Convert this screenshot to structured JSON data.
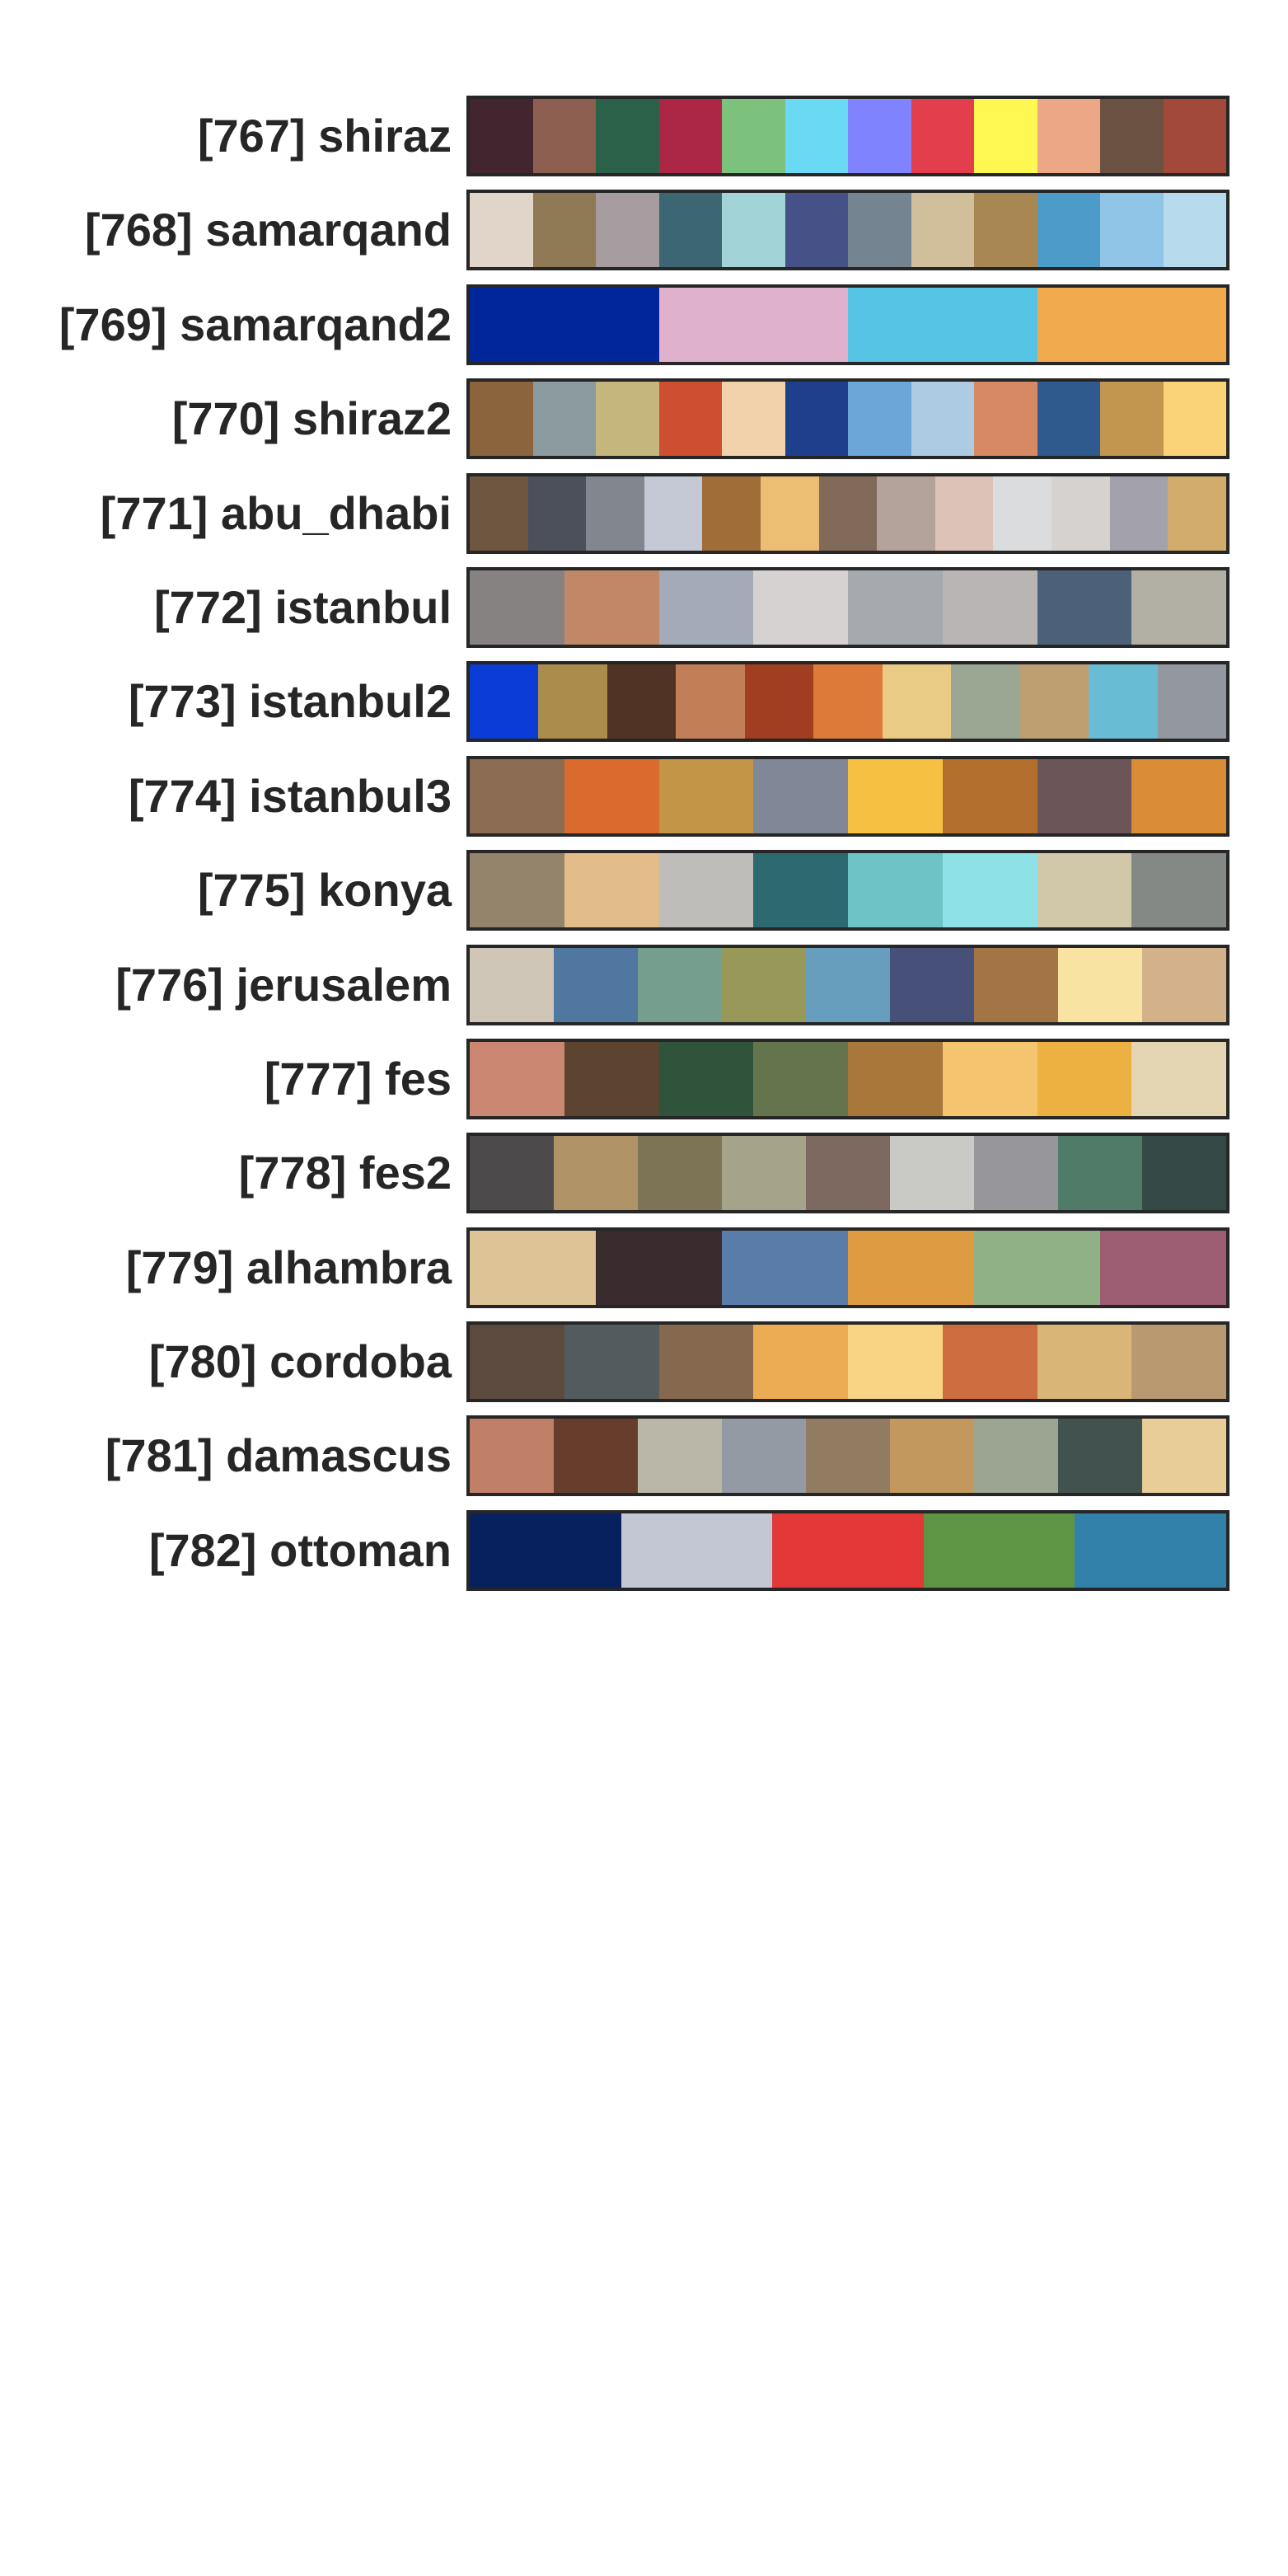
{
  "palettes": [
    {
      "label": "[767] shiraz",
      "colors": [
        "#43252f",
        "#8c5f51",
        "#2b6149",
        "#ab2745",
        "#7cc27d",
        "#6ad9f4",
        "#7f83fd",
        "#e23e4b",
        "#fff752",
        "#eca886",
        "#6a5142",
        "#a3493a"
      ]
    },
    {
      "label": "[768] samarqand",
      "colors": [
        "#e1d5c9",
        "#8f7954",
        "#a69c9f",
        "#3d6673",
        "#a2d3d6",
        "#465187",
        "#748491",
        "#d1be9a",
        "#a98752",
        "#4c9bc8",
        "#91c5e8",
        "#b7dbed"
      ]
    },
    {
      "label": "[769] samarqand2",
      "colors": [
        "#01269b",
        "#e0b1cd",
        "#56c5e5",
        "#f1aa4d"
      ]
    },
    {
      "label": "[770] shiraz2",
      "colors": [
        "#8b633c",
        "#8a9a9e",
        "#c5b67d",
        "#cd4e31",
        "#f1d2ab",
        "#1d3f8c",
        "#6ca5d7",
        "#adcbe2",
        "#d68962",
        "#2e5a8d",
        "#c39650",
        "#fad379"
      ]
    },
    {
      "label": "[771] abu_dhabi",
      "colors": [
        "#6f5641",
        "#4b505b",
        "#82868f",
        "#c5c9d5",
        "#a06d38",
        "#ebbe73",
        "#826a5b",
        "#b3a39a",
        "#dcc2b7",
        "#dbdcde",
        "#d6d2cf",
        "#a3a2ac",
        "#d2ac6c"
      ]
    },
    {
      "label": "[772] istanbul",
      "colors": [
        "#878282",
        "#c08867",
        "#a3abb9",
        "#d5d2d1",
        "#a6aaaf",
        "#b8b5b4",
        "#4c6079",
        "#b2b0a4"
      ]
    },
    {
      "label": "[773] istanbul2",
      "colors": [
        "#0c3cd6",
        "#ab8c4d",
        "#513325",
        "#c27f57",
        "#a03e1f",
        "#dd7a3a",
        "#eacb85",
        "#9ca793",
        "#bd9f71",
        "#68bdd5",
        "#93979f"
      ]
    },
    {
      "label": "[774] istanbul3",
      "colors": [
        "#8b6c52",
        "#da6a2e",
        "#c29547",
        "#808797",
        "#f6c143",
        "#b26e2d",
        "#6c5559",
        "#da8c37"
      ]
    },
    {
      "label": "[775] konya",
      "colors": [
        "#95846c",
        "#e3bd89",
        "#bebdb9",
        "#2d6a6f",
        "#6dc3c6",
        "#8fe1e8",
        "#d0c8a8",
        "#858986"
      ]
    },
    {
      "label": "[776] jerusalem",
      "colors": [
        "#cfc6b7",
        "#5077a0",
        "#769e8f",
        "#989958",
        "#689ebd",
        "#475079",
        "#a47544",
        "#f9e3a2",
        "#d3b18a"
      ]
    },
    {
      "label": "[777] fes",
      "colors": [
        "#cb8772",
        "#5c4431",
        "#30533c",
        "#64754d",
        "#a87739",
        "#f4c46e",
        "#edb142",
        "#e4d5b3"
      ]
    },
    {
      "label": "[778] fes2",
      "colors": [
        "#4d4a4b",
        "#af9265",
        "#7d7455",
        "#a6a38b",
        "#7e6961",
        "#c9cac6",
        "#97969b",
        "#4f7b68",
        "#354a46"
      ]
    },
    {
      "label": "[779] alhambra",
      "colors": [
        "#dec396",
        "#3a2b2e",
        "#5a7ca9",
        "#dd9b42",
        "#90b186",
        "#9c5c71"
      ]
    },
    {
      "label": "[780] cordoba",
      "colors": [
        "#5d4a3e",
        "#525c5e",
        "#86684e",
        "#ecac53",
        "#f8d383",
        "#cd6c3e",
        "#dab578",
        "#b99970"
      ]
    },
    {
      "label": "[781] damascus",
      "colors": [
        "#c08068",
        "#673e2b",
        "#bab7a9",
        "#939aa3",
        "#927c61",
        "#c2985e",
        "#9ca591",
        "#41524f",
        "#e8cd98"
      ]
    },
    {
      "label": "[782] ottoman",
      "colors": [
        "#07215f",
        "#c2c7d3",
        "#e33838",
        "#5d9544",
        "#3181aa"
      ]
    }
  ]
}
